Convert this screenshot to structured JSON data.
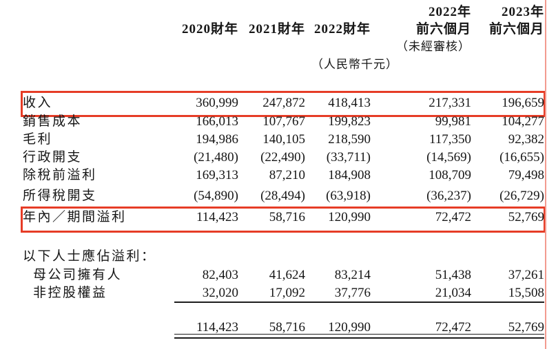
{
  "annotations": {
    "highlight_color": "#e63c26",
    "edge_line_color": "#f29a8e",
    "highlighted_rows": [
      "收入",
      "年內／期間溢利"
    ]
  },
  "table": {
    "header": {
      "col4_year": "2022年",
      "col5_year": "2023年",
      "col1_period": "2020財年",
      "col2_period": "2021財年",
      "col3_period": "2022財年",
      "col4_period": "前六個月",
      "col5_period": "前六個月",
      "unaudited_note": "（未經審核）",
      "unit_note": "（人民幣千元）"
    },
    "rows": [
      {
        "label": "收入",
        "values": [
          "360,999",
          "247,872",
          "418,413",
          "217,331",
          "196,659"
        ]
      },
      {
        "label": "銷售成本",
        "values": [
          "166,013",
          "107,767",
          "199,823",
          "99,981",
          "104,277"
        ]
      },
      {
        "label": "毛利",
        "values": [
          "194,986",
          "140,105",
          "218,590",
          "117,350",
          "92,382"
        ]
      },
      {
        "label": "行政開支",
        "values": [
          "(21,480)",
          "(22,490)",
          "(33,711)",
          "(14,569)",
          "(16,655)"
        ]
      },
      {
        "label": "除稅前溢利",
        "values": [
          "169,313",
          "87,210",
          "184,908",
          "108,709",
          "79,498"
        ]
      },
      {
        "label": "所得稅開支",
        "values": [
          "(54,890)",
          "(28,494)",
          "(63,918)",
          "(36,237)",
          "(26,729)"
        ]
      },
      {
        "label": "年內／期間溢利",
        "values": [
          "114,423",
          "58,716",
          "120,990",
          "72,472",
          "52,769"
        ]
      }
    ],
    "attribution": {
      "section_label": "以下人士應佔溢利：",
      "rows": [
        {
          "label": "母公司擁有人",
          "values": [
            "82,403",
            "41,624",
            "83,214",
            "51,438",
            "37,261"
          ]
        },
        {
          "label": "非控股權益",
          "values": [
            "32,020",
            "17,092",
            "37,776",
            "21,034",
            "15,508"
          ]
        }
      ],
      "total_values": [
        "114,423",
        "58,716",
        "120,990",
        "72,472",
        "52,769"
      ]
    }
  }
}
